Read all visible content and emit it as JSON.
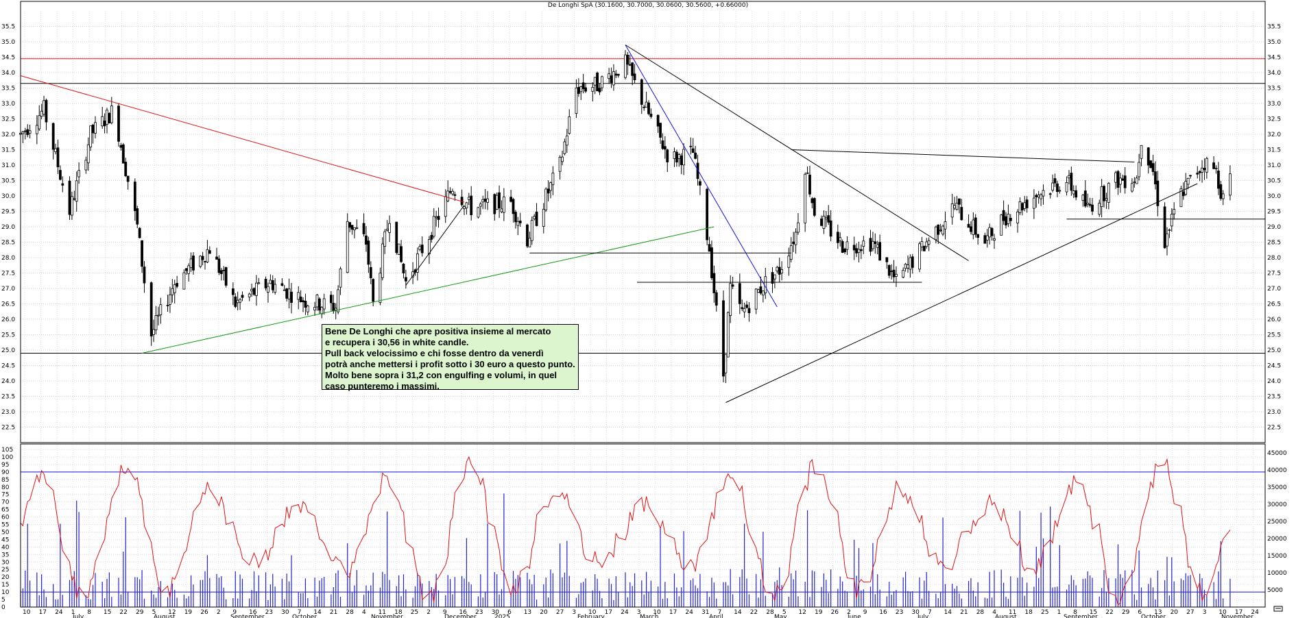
{
  "chart_data": [
    {
      "type": "candlestick",
      "title": "De Longhi SpA (30.1600, 30.7000, 30.0600, 30.5600, +0.66000)",
      "ylim": [
        22.0,
        36.0
      ],
      "yticks": [
        "22.5",
        "23.0",
        "23.5",
        "24.0",
        "24.5",
        "25.0",
        "25.5",
        "26.0",
        "26.5",
        "27.0",
        "27.5",
        "28.0",
        "28.5",
        "29.0",
        "29.5",
        "30.0",
        "30.5",
        "31.0",
        "31.5",
        "32.0",
        "32.5",
        "33.0",
        "33.5",
        "34.0",
        "34.5",
        "35.0",
        "35.5"
      ],
      "horizontal_levels": [
        {
          "value": 34.45,
          "color": "#e01010"
        },
        {
          "value": 33.65,
          "color": "#000000"
        },
        {
          "value": 24.9,
          "color": "#000000"
        }
      ],
      "trendlines": [
        {
          "from": [
            "2024-06-10",
            33.9
          ],
          "to": [
            "2024-12-17",
            29.8
          ],
          "color": "#e01010"
        },
        {
          "from": [
            "2024-08-01",
            24.9
          ],
          "to": [
            "2025-04-03",
            29.0
          ],
          "color": "#119911"
        },
        {
          "from": [
            "2024-11-22",
            27.1
          ],
          "to": [
            "2024-12-17",
            29.7
          ],
          "color": "#000000"
        },
        {
          "from": [
            "2025-02-24",
            34.9
          ],
          "to": [
            "2025-04-30",
            26.4
          ],
          "color": "#1010e0"
        },
        {
          "from": [
            "2025-02-24",
            34.9
          ],
          "to": [
            "2025-07-21",
            27.9
          ],
          "color": "#000000"
        },
        {
          "from": [
            "2025-04-08",
            23.3
          ],
          "to": [
            "2025-10-27",
            30.4
          ],
          "color": "#000000"
        },
        {
          "from": [
            "2025-01-14",
            28.15
          ],
          "to": [
            "2025-05-06",
            28.15
          ],
          "color": "#000000"
        },
        {
          "from": [
            "2025-03-01",
            27.2
          ],
          "to": [
            "2025-07-01",
            27.2
          ],
          "color": "#000000"
        },
        {
          "from": [
            "2025-05-06",
            31.5
          ],
          "to": [
            "2025-09-30",
            31.1
          ],
          "color": "#000000"
        },
        {
          "from": [
            "2025-09-01",
            29.25
          ],
          "to": [
            "2025-11-25",
            29.25
          ],
          "color": "#000000"
        }
      ],
      "annotation": [
        "Bene De Longhi che apre positiva insieme al mercato",
        "e recupera i 30,56 in white candle.",
        "Pull back velocissimo e chi fosse dentro da venerdì",
        "potrà anche mettersi i profit sotto i 30 euro a questo punto.",
        "Molto bene sopra i 31,2 con engulfing e volumi, in quel",
        "caso punteremo i massimi."
      ],
      "price_path": [
        [
          "2024-06-10",
          32.0
        ],
        [
          "2024-06-20",
          32.8
        ],
        [
          "2024-07-01",
          29.5
        ],
        [
          "2024-07-10",
          32.0
        ],
        [
          "2024-07-20",
          32.8
        ],
        [
          "2024-07-30",
          29.0
        ],
        [
          "2024-08-05",
          25.5
        ],
        [
          "2024-08-15",
          27.2
        ],
        [
          "2024-08-30",
          28.3
        ],
        [
          "2024-09-10",
          26.5
        ],
        [
          "2024-09-25",
          27.2
        ],
        [
          "2024-10-10",
          26.6
        ],
        [
          "2024-10-23",
          26.4
        ],
        [
          "2024-10-28",
          29.2
        ],
        [
          "2024-11-05",
          28.5
        ],
        [
          "2024-11-08",
          26.5
        ],
        [
          "2024-11-15",
          29.4
        ],
        [
          "2024-11-22",
          27.2
        ],
        [
          "2024-12-05",
          29.2
        ],
        [
          "2024-12-12",
          30.3
        ],
        [
          "2024-12-20",
          29.6
        ],
        [
          "2025-01-06",
          29.8
        ],
        [
          "2025-01-13",
          28.6
        ],
        [
          "2025-01-27",
          31.0
        ],
        [
          "2025-02-03",
          33.5
        ],
        [
          "2025-02-12",
          33.6
        ],
        [
          "2025-02-24",
          34.3
        ],
        [
          "2025-03-05",
          32.8
        ],
        [
          "2025-03-15",
          31.2
        ],
        [
          "2025-03-25",
          31.4
        ],
        [
          "2025-04-01",
          28.3
        ],
        [
          "2025-04-07",
          24.2
        ],
        [
          "2025-04-10",
          27.0
        ],
        [
          "2025-04-15",
          26.2
        ],
        [
          "2025-04-25",
          27.2
        ],
        [
          "2025-05-01",
          27.6
        ],
        [
          "2025-05-08",
          28.8
        ],
        [
          "2025-05-12",
          31.0
        ],
        [
          "2025-05-16",
          29.5
        ],
        [
          "2025-05-28",
          28.4
        ],
        [
          "2025-06-10",
          28.5
        ],
        [
          "2025-06-20",
          27.2
        ],
        [
          "2025-07-01",
          28.3
        ],
        [
          "2025-07-15",
          29.7
        ],
        [
          "2025-07-28",
          28.5
        ],
        [
          "2025-08-05",
          29.3
        ],
        [
          "2025-08-20",
          30.1
        ],
        [
          "2025-09-01",
          30.5
        ],
        [
          "2025-09-10",
          29.6
        ],
        [
          "2025-09-22",
          30.5
        ],
        [
          "2025-10-01",
          30.6
        ],
        [
          "2025-10-03",
          31.9
        ],
        [
          "2025-10-08",
          30.8
        ],
        [
          "2025-10-13",
          28.5
        ],
        [
          "2025-10-20",
          30.1
        ],
        [
          "2025-10-30",
          31.1
        ],
        [
          "2025-11-04",
          30.8
        ],
        [
          "2025-11-07",
          29.9
        ],
        [
          "2025-11-10",
          30.56
        ]
      ]
    },
    {
      "type": "line+bar",
      "ylim": [
        0,
        105
      ],
      "yticks": [
        "0",
        "5",
        "10",
        "15",
        "20",
        "25",
        "30",
        "35",
        "40",
        "45",
        "50",
        "55",
        "60",
        "65",
        "70",
        "75",
        "80",
        "85",
        "90",
        "95",
        "100",
        "105"
      ],
      "y2lim": [
        0,
        46000
      ],
      "y2ticks": [
        "5000",
        "10000",
        "15000",
        "20000",
        "25000",
        "30000",
        "35000",
        "40000",
        "45000"
      ],
      "horizontal_levels": [
        {
          "value": 90,
          "color": "#1010e0"
        },
        {
          "value": 10,
          "color": "#1010e0"
        }
      ]
    }
  ],
  "x_axis": {
    "day_labels": [
      "10",
      "17",
      "24",
      "1",
      "8",
      "15",
      "22",
      "29",
      "5",
      "12",
      "19",
      "26",
      "2",
      "9",
      "16",
      "23",
      "30",
      "7",
      "14",
      "21",
      "28",
      "4",
      "11",
      "18",
      "25",
      "2",
      "9",
      "16",
      "23",
      "30",
      "6",
      "13",
      "20",
      "27",
      "3",
      "10",
      "17",
      "24",
      "3",
      "10",
      "17",
      "24",
      "31",
      "7",
      "14",
      "22",
      "28",
      "5",
      "12",
      "19",
      "26",
      "2",
      "9",
      "16",
      "23",
      "30",
      "7",
      "14",
      "21",
      "28",
      "4",
      "11",
      "18",
      "25",
      "1",
      "8",
      "15",
      "22",
      "29",
      "6",
      "13",
      "20",
      "27",
      "3",
      "10",
      "17",
      "24"
    ],
    "month_labels": [
      "July",
      "August",
      "September",
      "October",
      "November",
      "December",
      "2025",
      "February",
      "March",
      "April",
      "May",
      "June",
      "July",
      "August",
      "September",
      "October",
      "November"
    ]
  }
}
